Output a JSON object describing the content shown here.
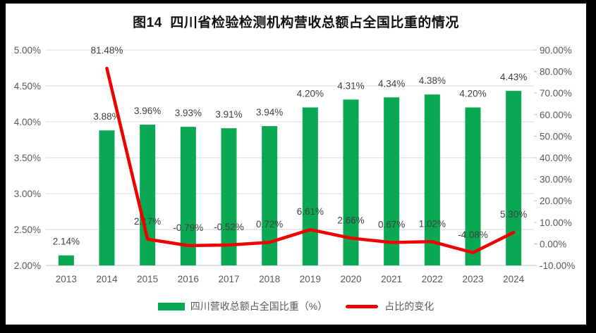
{
  "chart_data": {
    "type": "bar-line-combo",
    "title": "图14  四川省检验检测机构营收总额占全国比重的情况",
    "categories": [
      "2013",
      "2014",
      "2015",
      "2016",
      "2017",
      "2018",
      "2019",
      "2020",
      "2021",
      "2022",
      "2023",
      "2024"
    ],
    "series": [
      {
        "name": "四川营收总额占全国比重（%）",
        "type": "bar",
        "axis": "left",
        "values": [
          2.14,
          3.88,
          3.96,
          3.93,
          3.91,
          3.94,
          4.2,
          4.31,
          4.34,
          4.38,
          4.2,
          4.43
        ],
        "labels": [
          "2.14%",
          "3.88%",
          "3.96%",
          "3.93%",
          "3.91%",
          "3.94%",
          "4.20%",
          "4.31%",
          "4.34%",
          "4.38%",
          "4.20%",
          "4.43%"
        ]
      },
      {
        "name": "占比的变化",
        "type": "line",
        "axis": "right",
        "values": [
          null,
          81.48,
          2.17,
          -0.79,
          -0.52,
          0.72,
          6.61,
          2.66,
          0.67,
          1.02,
          -4.08,
          5.3
        ],
        "labels": [
          null,
          "81.48%",
          "2.17%",
          "-0.79%",
          "-0.52%",
          "0.72%",
          "6.61%",
          "2.66%",
          "0.67%",
          "1.02%",
          "-4.08%",
          "5.30%"
        ]
      }
    ],
    "left_axis": {
      "min": 2,
      "max": 5,
      "step": 0.5,
      "tick_labels": [
        "2.00%",
        "2.50%",
        "3.00%",
        "3.50%",
        "4.00%",
        "4.50%",
        "5.00%"
      ]
    },
    "right_axis": {
      "min": -10,
      "max": 90,
      "step": 10,
      "tick_labels": [
        "-10.00%",
        "0.00%",
        "10.00%",
        "20.00%",
        "30.00%",
        "40.00%",
        "50.00%",
        "60.00%",
        "70.00%",
        "80.00%",
        "90.00%"
      ]
    },
    "grid": true,
    "legend_position": "bottom",
    "colors": {
      "bar": "#0AA853",
      "line": "#F00000",
      "grid": "#D9D9D9",
      "axis_line": "#C0C0C0",
      "axis_text": "#595959",
      "label_text": "#404040",
      "legend_text": "#595959",
      "title_text": "#111111",
      "frame_border": "#000000",
      "background": "#FFFFFF"
    }
  }
}
